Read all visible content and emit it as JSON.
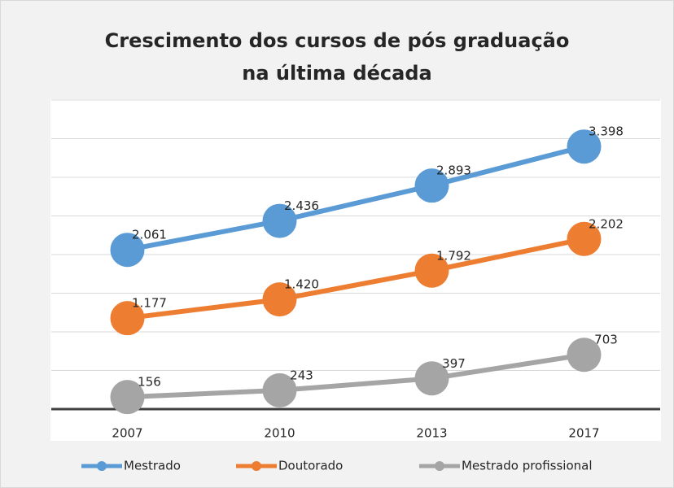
{
  "chart_data": {
    "type": "line",
    "title": "Crescimento dos cursos de pós graduação na última década",
    "categories": [
      "2007",
      "2010",
      "2013",
      "2017"
    ],
    "series": [
      {
        "name": "Mestrado",
        "color": "#5b9bd5",
        "values": [
          2061,
          2436,
          2893,
          3398
        ],
        "value_labels": [
          "2.061",
          "2.436",
          "2.893",
          "3.398"
        ]
      },
      {
        "name": "Doutorado",
        "color": "#ed7d31",
        "values": [
          1177,
          1420,
          1792,
          2202
        ],
        "value_labels": [
          "1.177",
          "1.420",
          "1.792",
          "2.202"
        ]
      },
      {
        "name": "Mestrado profissional",
        "color": "#a5a5a5",
        "values": [
          156,
          243,
          397,
          703
        ],
        "value_labels": [
          "156",
          "243",
          "397",
          "703"
        ]
      }
    ],
    "ylim": [
      0,
      4000
    ],
    "yticks": [
      0,
      500,
      1000,
      1500,
      2000,
      2500,
      3000,
      3500,
      4000
    ],
    "grid": true,
    "legend": "bottom"
  }
}
